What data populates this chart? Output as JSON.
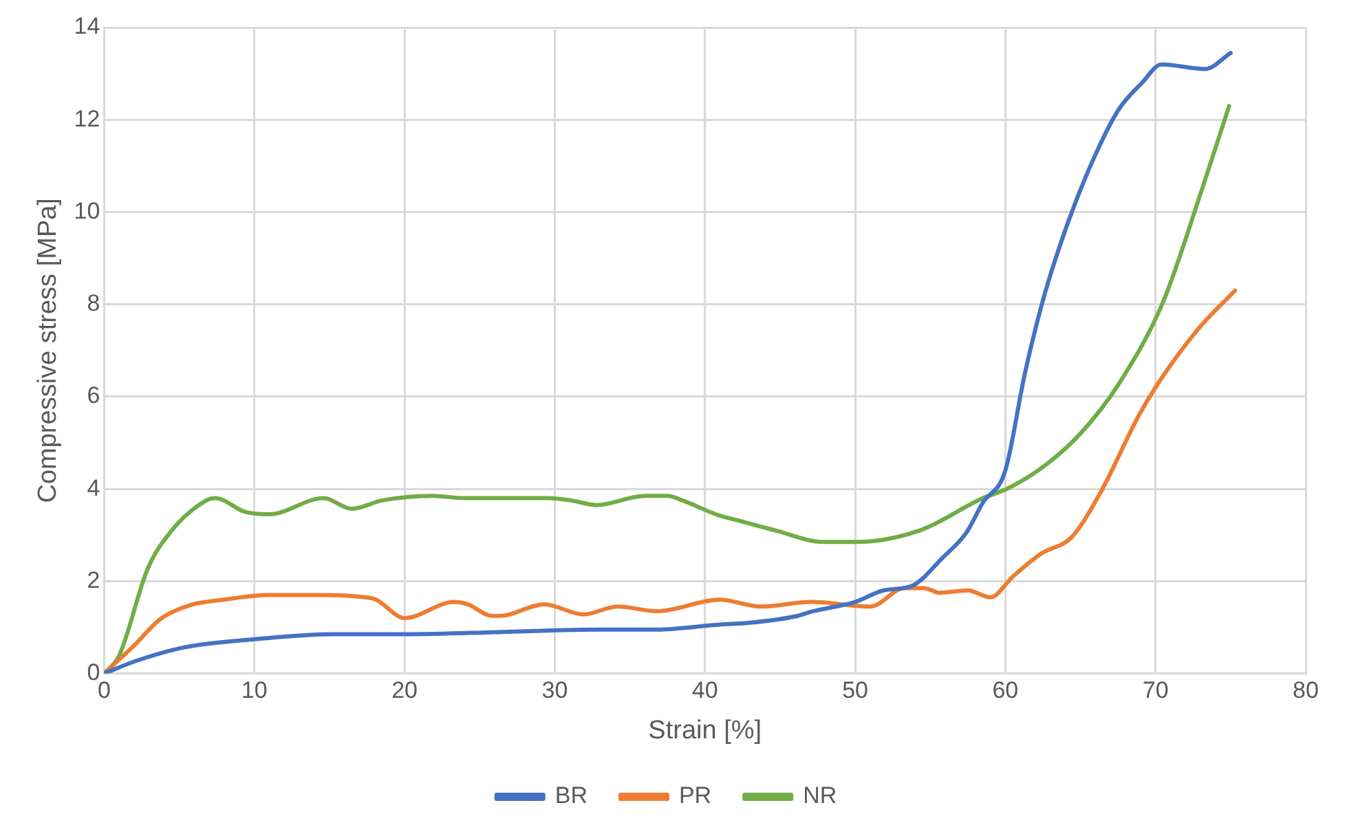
{
  "chart_data": {
    "type": "line",
    "xlabel": "Strain [%]",
    "ylabel": "Compressive stress [MPa]",
    "xlim": [
      0,
      80
    ],
    "xticks": [
      0,
      10,
      20,
      30,
      40,
      50,
      60,
      70,
      80
    ],
    "ylim": [
      0,
      14
    ],
    "yticks": [
      0,
      2,
      4,
      6,
      8,
      10,
      12,
      14
    ],
    "grid": true,
    "legend": "bottom",
    "marker": "none",
    "line_style": "solid",
    "series": [
      {
        "name": "BR",
        "color": "#4472c4",
        "x": [
          0,
          2.1,
          5.4,
          10.3,
          15.2,
          20.1,
          26.6,
          33.1,
          36.6,
          41,
          43,
          46.2,
          47.1,
          50,
          51.9,
          53.8,
          55.8,
          57.4,
          58.5,
          60,
          61.3,
          62.6,
          64.2,
          65.8,
          67.5,
          69.1,
          70.4,
          73.3,
          75
        ],
        "values": [
          0,
          0.27,
          0.57,
          0.75,
          0.85,
          0.85,
          0.9,
          0.95,
          0.95,
          1.06,
          1.1,
          1.25,
          1.34,
          1.55,
          1.8,
          1.9,
          2.5,
          3.05,
          3.7,
          4.4,
          6.5,
          8.2,
          9.8,
          11.1,
          12.2,
          12.8,
          13.2,
          13.1,
          13.45
        ]
      },
      {
        "name": "PR",
        "color": "#ed7d31",
        "x": [
          0,
          2.1,
          3.7,
          5.7,
          8,
          10.9,
          14.2,
          17.4,
          18.1,
          20,
          23.3,
          24.2,
          25.8,
          26.4,
          29.3,
          31.9,
          34.2,
          36.8,
          41,
          43.7,
          47.1,
          51,
          53.3,
          54.6,
          55.6,
          57.5,
          59,
          60.5,
          62.4,
          64.4,
          66.3,
          68.9,
          70.2,
          72.8,
          75.3
        ],
        "values": [
          0,
          0.64,
          1.17,
          1.48,
          1.6,
          1.7,
          1.7,
          1.65,
          1.6,
          1.2,
          1.55,
          1.5,
          1.25,
          1.25,
          1.5,
          1.28,
          1.45,
          1.35,
          1.6,
          1.45,
          1.55,
          1.45,
          1.85,
          1.85,
          1.75,
          1.8,
          1.65,
          2.1,
          2.6,
          2.95,
          3.9,
          5.6,
          6.3,
          7.45,
          8.3
        ]
      },
      {
        "name": "NR",
        "color": "#70ad47",
        "x": [
          0,
          1,
          2.9,
          4.5,
          6.8,
          7.4,
          9.4,
          11,
          14.6,
          16.5,
          18.5,
          21.8,
          24,
          29.5,
          31.1,
          32.8,
          36,
          37.5,
          38.5,
          40.9,
          42.4,
          44.7,
          47.9,
          50,
          54.3,
          58.5,
          60.1,
          62.4,
          65,
          67.6,
          70.5,
          73.1,
          74.9
        ],
        "values": [
          0,
          0.39,
          2.27,
          3.1,
          3.75,
          3.8,
          3.5,
          3.45,
          3.8,
          3.57,
          3.75,
          3.85,
          3.8,
          3.8,
          3.75,
          3.65,
          3.85,
          3.85,
          3.75,
          3.43,
          3.3,
          3.1,
          2.85,
          2.85,
          3.1,
          3.8,
          4,
          4.45,
          5.2,
          6.3,
          8.05,
          10.5,
          12.3
        ]
      }
    ]
  }
}
